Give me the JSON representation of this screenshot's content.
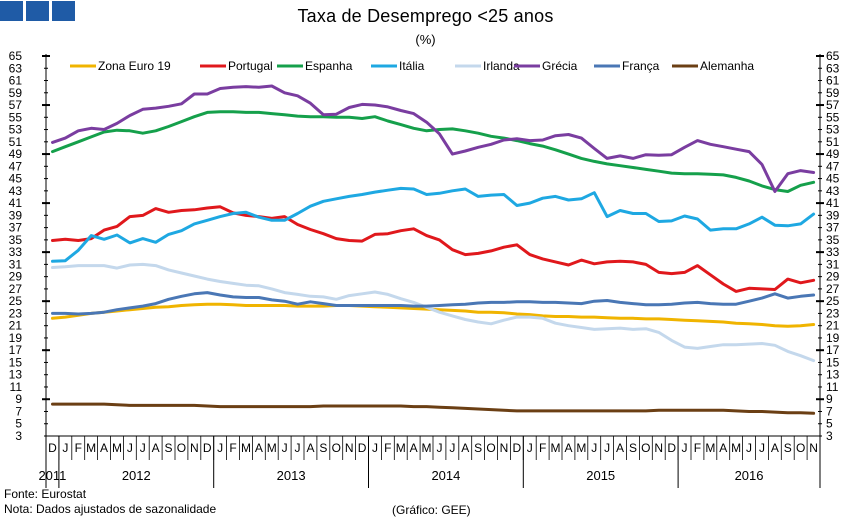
{
  "header": {
    "title": "Taxa de Desemprego <25 anos",
    "subtitle": "(%)"
  },
  "footer": {
    "source": "Fonte: Eurostat",
    "note": "Nota: Dados ajustados de sazonalidade",
    "credit": "(Gráfico: GEE)"
  },
  "chart_data": {
    "type": "line",
    "title": "Taxa de Desemprego <25 anos",
    "ylabel": "%",
    "ylim": [
      3,
      65
    ],
    "y_ticks": [
      3,
      5,
      7,
      9,
      11,
      13,
      15,
      17,
      19,
      21,
      23,
      25,
      27,
      29,
      31,
      33,
      35,
      37,
      39,
      41,
      43,
      45,
      47,
      49,
      51,
      53,
      55,
      57,
      59,
      61,
      63,
      65
    ],
    "month_labels": [
      "D",
      "J",
      "F",
      "M",
      "A",
      "M",
      "J",
      "J",
      "A",
      "S",
      "O",
      "N",
      "D",
      "J",
      "F",
      "M",
      "A",
      "M",
      "J",
      "J",
      "A",
      "S",
      "O",
      "N",
      "D",
      "J",
      "F",
      "M",
      "A",
      "M",
      "J",
      "J",
      "A",
      "S",
      "O",
      "N",
      "D",
      "J",
      "F",
      "M",
      "A",
      "M",
      "J",
      "J",
      "A",
      "S",
      "O",
      "N",
      "D",
      "J",
      "F",
      "M",
      "A",
      "M",
      "J",
      "J",
      "A",
      "S",
      "O",
      "N"
    ],
    "year_labels": [
      {
        "label": "2011",
        "start": 0,
        "end": 0
      },
      {
        "label": "2012",
        "start": 1,
        "end": 12
      },
      {
        "label": "2013",
        "start": 13,
        "end": 24
      },
      {
        "label": "2014",
        "start": 25,
        "end": 36
      },
      {
        "label": "2015",
        "start": 37,
        "end": 48
      },
      {
        "label": "2016",
        "start": 49,
        "end": 59
      }
    ],
    "series": [
      {
        "name": "Zona Euro 19",
        "color": "#f0b400",
        "values": [
          22.2,
          22.4,
          22.7,
          23.0,
          23.2,
          23.4,
          23.6,
          23.8,
          24.0,
          24.1,
          24.3,
          24.4,
          24.5,
          24.5,
          24.4,
          24.3,
          24.3,
          24.3,
          24.3,
          24.2,
          24.2,
          24.2,
          24.3,
          24.3,
          24.2,
          24.1,
          24.0,
          23.9,
          23.8,
          23.7,
          23.6,
          23.5,
          23.4,
          23.2,
          23.2,
          23.1,
          22.9,
          22.8,
          22.6,
          22.5,
          22.5,
          22.4,
          22.4,
          22.3,
          22.2,
          22.2,
          22.1,
          22.1,
          22.0,
          21.9,
          21.8,
          21.7,
          21.6,
          21.4,
          21.3,
          21.2,
          21.0,
          20.9,
          21.0,
          21.2
        ]
      },
      {
        "name": "Portugal",
        "color": "#e0181c",
        "values": [
          34.9,
          35.1,
          34.9,
          35.2,
          36.6,
          37.2,
          38.8,
          39.0,
          40.1,
          39.5,
          39.8,
          39.9,
          40.2,
          40.4,
          39.4,
          39.0,
          38.8,
          38.5,
          38.8,
          37.5,
          36.7,
          36.0,
          35.2,
          34.9,
          34.8,
          35.9,
          36.0,
          36.5,
          36.8,
          35.7,
          35.0,
          33.4,
          32.6,
          32.8,
          33.2,
          33.8,
          34.2,
          32.6,
          31.9,
          31.4,
          30.9,
          31.7,
          31.1,
          31.4,
          31.5,
          31.4,
          31.0,
          29.7,
          29.5,
          29.7,
          30.8,
          29.3,
          27.8,
          26.6,
          27.1,
          27.0,
          26.9,
          28.6,
          28.0,
          28.4
        ]
      },
      {
        "name": "Espanha",
        "color": "#15a04b",
        "values": [
          49.4,
          50.2,
          51.0,
          51.8,
          52.6,
          52.9,
          52.8,
          52.4,
          52.8,
          53.5,
          54.3,
          55.1,
          55.8,
          55.9,
          55.9,
          55.8,
          55.8,
          55.6,
          55.4,
          55.2,
          55.1,
          55.1,
          55.0,
          55.0,
          54.8,
          55.1,
          54.4,
          53.8,
          53.2,
          52.8,
          53.0,
          53.1,
          52.8,
          52.4,
          51.9,
          51.6,
          51.2,
          50.7,
          50.3,
          49.7,
          49.0,
          48.3,
          47.8,
          47.4,
          47.1,
          46.8,
          46.5,
          46.2,
          45.9,
          45.8,
          45.8,
          45.7,
          45.6,
          45.2,
          44.6,
          43.8,
          43.2,
          42.9,
          43.9,
          44.4
        ]
      },
      {
        "name": "Itália",
        "color": "#1ea8e2",
        "values": [
          31.5,
          31.6,
          33.3,
          35.7,
          35.1,
          35.8,
          34.5,
          35.2,
          34.6,
          35.9,
          36.5,
          37.6,
          38.2,
          38.8,
          39.3,
          39.5,
          38.7,
          38.2,
          38.2,
          39.3,
          40.5,
          41.3,
          41.7,
          42.1,
          42.4,
          42.8,
          43.1,
          43.4,
          43.3,
          42.4,
          42.6,
          43.0,
          43.3,
          42.1,
          42.3,
          42.4,
          40.6,
          41.0,
          41.8,
          42.1,
          41.5,
          41.7,
          42.7,
          38.8,
          39.8,
          39.3,
          39.3,
          38.0,
          38.1,
          38.9,
          38.4,
          36.6,
          36.8,
          36.8,
          37.6,
          38.7,
          37.4,
          37.3,
          37.6,
          39.2
        ]
      },
      {
        "name": "Irlanda",
        "color": "#c4d8ec",
        "values": [
          30.5,
          30.6,
          30.8,
          30.8,
          30.8,
          30.4,
          30.9,
          31.0,
          30.8,
          30.1,
          29.6,
          29.1,
          28.6,
          28.2,
          27.9,
          27.6,
          27.5,
          27.0,
          26.4,
          26.1,
          25.8,
          25.7,
          25.3,
          25.9,
          26.2,
          26.5,
          26.1,
          25.4,
          24.8,
          24.0,
          23.2,
          22.6,
          22.0,
          21.6,
          21.3,
          21.9,
          22.4,
          22.4,
          22.2,
          21.4,
          21.0,
          20.7,
          20.4,
          20.5,
          20.6,
          20.4,
          20.5,
          19.9,
          18.6,
          17.5,
          17.3,
          17.6,
          17.9,
          17.9,
          18.0,
          18.1,
          17.8,
          16.8,
          16.1,
          15.3
        ]
      },
      {
        "name": "Grécia",
        "color": "#7a3da0",
        "values": [
          50.9,
          51.6,
          52.8,
          53.2,
          53.0,
          54.0,
          55.3,
          56.3,
          56.5,
          56.8,
          57.2,
          58.8,
          58.8,
          59.7,
          59.9,
          60.0,
          59.9,
          60.1,
          59.0,
          58.5,
          57.3,
          55.4,
          55.5,
          56.6,
          57.1,
          57.0,
          56.7,
          56.1,
          55.6,
          54.2,
          52.3,
          49.0,
          49.5,
          50.1,
          50.6,
          51.3,
          51.5,
          51.2,
          51.3,
          52.0,
          52.2,
          51.6,
          49.9,
          48.3,
          48.7,
          48.3,
          48.9,
          48.8,
          48.9,
          50.1,
          51.2,
          50.6,
          50.2,
          49.8,
          49.4,
          47.3,
          42.9,
          45.8,
          46.3,
          46.0
        ]
      },
      {
        "name": "França",
        "color": "#4a77b5",
        "values": [
          23.0,
          23.0,
          22.9,
          23.0,
          23.2,
          23.6,
          23.9,
          24.2,
          24.6,
          25.3,
          25.8,
          26.2,
          26.4,
          26.0,
          25.7,
          25.6,
          25.6,
          25.2,
          25.0,
          24.5,
          24.9,
          24.6,
          24.3,
          24.3,
          24.3,
          24.3,
          24.3,
          24.3,
          24.2,
          24.2,
          24.3,
          24.4,
          24.5,
          24.7,
          24.8,
          24.8,
          24.9,
          24.9,
          24.8,
          24.8,
          24.7,
          24.6,
          25.0,
          25.1,
          24.8,
          24.6,
          24.4,
          24.4,
          24.5,
          24.7,
          24.8,
          24.6,
          24.5,
          24.5,
          25.0,
          25.5,
          26.2,
          25.5,
          25.8,
          26.0
        ]
      },
      {
        "name": "Alemanha",
        "color": "#6b3f14",
        "values": [
          8.2,
          8.2,
          8.2,
          8.2,
          8.2,
          8.1,
          8.0,
          8.0,
          8.0,
          8.0,
          8.0,
          8.0,
          7.9,
          7.8,
          7.8,
          7.8,
          7.8,
          7.8,
          7.8,
          7.8,
          7.8,
          7.9,
          7.9,
          7.9,
          7.9,
          7.9,
          7.9,
          7.9,
          7.8,
          7.8,
          7.7,
          7.6,
          7.5,
          7.4,
          7.3,
          7.2,
          7.1,
          7.1,
          7.1,
          7.1,
          7.1,
          7.1,
          7.1,
          7.1,
          7.1,
          7.1,
          7.1,
          7.2,
          7.2,
          7.2,
          7.2,
          7.2,
          7.2,
          7.1,
          7.0,
          7.0,
          6.9,
          6.8,
          6.8,
          6.7
        ]
      }
    ]
  }
}
